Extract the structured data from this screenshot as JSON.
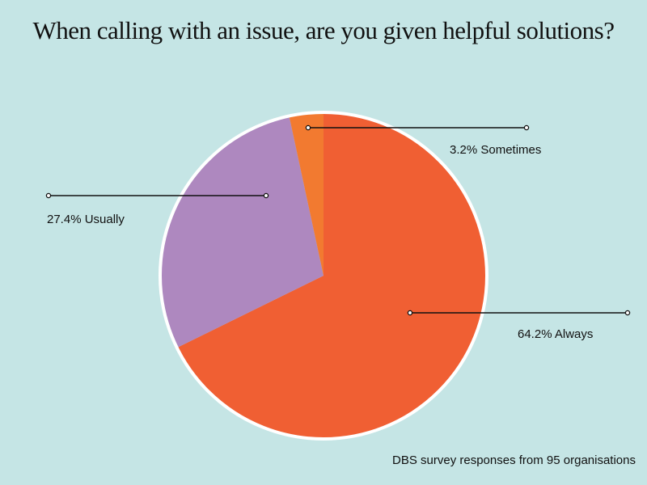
{
  "chart_data": {
    "type": "pie",
    "title": "When calling with an issue, are you given helpful solutions?",
    "slices": [
      {
        "label": "Always",
        "value": 64.2,
        "display": "64.2% Always",
        "color": "#f05f33"
      },
      {
        "label": "Usually",
        "value": 27.4,
        "display": "27.4% Usually",
        "color": "#ae88bf"
      },
      {
        "label": "Sometimes",
        "value": 3.2,
        "display": "3.2% Sometimes",
        "color": "#f27a30"
      }
    ],
    "source_note": "DBS survey responses from 95 organisations"
  }
}
